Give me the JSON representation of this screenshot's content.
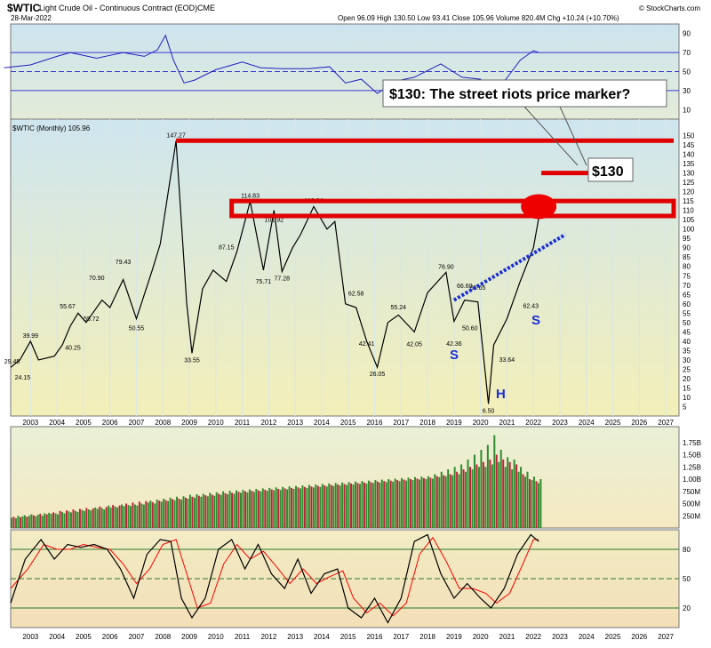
{
  "header": {
    "symbol": "$WTIC",
    "description": "Light Crude Oil - Continuous Contract (EOD)",
    "exchange": "CME",
    "date": "28-Mar-2022",
    "copyright": "© StockCharts.com",
    "ohlc_text": "Open 96.09  High 130.50  Low 93.41  Close 105.96  Volume 820.4M  Chg +10.24 (+10.70%)",
    "price_legend": "$WTIC (Monthly) 105.96"
  },
  "colors": {
    "red": "#e00000",
    "blue_line": "#2020c0",
    "dotted_blue": "#1a2ed6",
    "up_bar": "#2e8b2e",
    "down_bar": "#c0203a",
    "osc_black": "#000000",
    "osc_red": "#ff0000"
  },
  "callouts": {
    "riots": "$130:  The street riots price marker?",
    "target": "$130",
    "s_left": "S",
    "head": "H",
    "s_right": "S"
  },
  "chart_data": [
    {
      "type": "line",
      "panel": "rsi",
      "y_ticks": [
        "90",
        "70",
        "50",
        "30",
        "10"
      ],
      "ylim": [
        0,
        100
      ],
      "guides": [
        70,
        50,
        30
      ],
      "x": [
        2002.0,
        2003.0,
        2004.0,
        2004.5,
        2005.5,
        2006.5,
        2007.3,
        2007.8,
        2008.1,
        2008.4,
        2008.8,
        2009.2,
        2010.0,
        2011.0,
        2011.7,
        2012.5,
        2013.5,
        2014.3,
        2014.9,
        2015.5,
        2016.1,
        2016.8,
        2017.5,
        2018.5,
        2019.3,
        2020.0,
        2020.3,
        2020.8,
        2021.5,
        2022.0,
        2022.2
      ],
      "values": [
        54,
        57,
        66,
        70,
        64,
        70,
        66,
        73,
        88,
        62,
        38,
        41,
        52,
        60,
        54,
        53,
        53,
        55,
        38,
        42,
        27,
        40,
        44,
        58,
        44,
        42,
        18,
        36,
        62,
        72,
        70
      ]
    },
    {
      "type": "line",
      "panel": "price",
      "series_name": "$WTIC (Monthly)",
      "y_ticks": [
        "150",
        "145",
        "140",
        "135",
        "130",
        "125",
        "120",
        "115",
        "110",
        "105",
        "100",
        "95",
        "90",
        "85",
        "80",
        "75",
        "70",
        "65",
        "60",
        "55",
        "50",
        "45",
        "40",
        "35",
        "30",
        "25",
        "20",
        "15",
        "10",
        "5"
      ],
      "ylim": [
        0,
        155
      ],
      "x_ticks": [
        "2003",
        "2004",
        "2005",
        "2006",
        "2007",
        "2008",
        "2009",
        "2010",
        "2011",
        "2012",
        "2013",
        "2014",
        "2015",
        "2016",
        "2017",
        "2018",
        "2019",
        "2020",
        "2021",
        "2022",
        "2023",
        "2024",
        "2025",
        "2026",
        "2027"
      ],
      "xlim": [
        2002.25,
        2027.5
      ],
      "x": [
        2002.25,
        2002.6,
        2003.0,
        2003.3,
        2003.9,
        2004.2,
        2004.5,
        2004.8,
        2005.1,
        2005.7,
        2006.0,
        2006.5,
        2007.0,
        2007.6,
        2007.9,
        2008.5,
        2008.9,
        2009.1,
        2009.5,
        2009.9,
        2010.4,
        2010.8,
        2011.3,
        2011.8,
        2012.2,
        2012.5,
        2012.9,
        2013.2,
        2013.7,
        2014.2,
        2014.5,
        2014.9,
        2015.3,
        2015.7,
        2016.1,
        2016.5,
        2016.9,
        2017.5,
        2018.0,
        2018.7,
        2019.0,
        2019.4,
        2019.9,
        2020.3,
        2020.5,
        2021.0,
        2021.5,
        2022.0,
        2022.2
      ],
      "values": [
        26,
        30,
        39.99,
        30,
        32,
        38,
        48,
        55,
        50,
        62,
        58,
        73,
        52,
        78,
        92,
        147.27,
        60,
        33.55,
        68,
        78,
        72,
        88,
        114.83,
        78,
        110,
        77.28,
        90,
        97,
        112,
        100,
        104,
        60,
        58,
        40,
        26.05,
        50,
        54,
        45,
        66,
        76.9,
        50.6,
        62,
        61,
        6.5,
        38,
        52,
        72,
        90,
        105.96
      ]
    },
    {
      "type": "bar",
      "panel": "volume",
      "y_ticks": [
        "1.75B",
        "1.50B",
        "1.25B",
        "1.00B",
        "750M",
        "500M",
        "250M"
      ],
      "ylim": [
        0,
        2000
      ],
      "y_unit": "M",
      "x_start": 2002.25,
      "step": 0.0833,
      "values": [
        210,
        230,
        200,
        250,
        220,
        240,
        260,
        230,
        250,
        280,
        260,
        240,
        270,
        290,
        250,
        300,
        280,
        310,
        290,
        320,
        300,
        280,
        350,
        330,
        300,
        360,
        340,
        320,
        380,
        350,
        330,
        390,
        370,
        350,
        410,
        380,
        360,
        400,
        420,
        390,
        440,
        410,
        380,
        430,
        460,
        420,
        470,
        440,
        420,
        460,
        480,
        450,
        500,
        470,
        450,
        520,
        480,
        460,
        540,
        500,
        480,
        550,
        520,
        560,
        530,
        500,
        580,
        560,
        540,
        600,
        570,
        550,
        620,
        590,
        570,
        640,
        600,
        580,
        650,
        620,
        600,
        680,
        640,
        620,
        690,
        660,
        640,
        700,
        670,
        650,
        720,
        680,
        660,
        730,
        700,
        680,
        750,
        710,
        690,
        760,
        720,
        700,
        770,
        740,
        720,
        780,
        750,
        730,
        790,
        760,
        740,
        800,
        770,
        750,
        810,
        780,
        760,
        820,
        790,
        770,
        830,
        800,
        780,
        840,
        810,
        790,
        850,
        820,
        800,
        860,
        830,
        810,
        870,
        840,
        820,
        880,
        850,
        830,
        890,
        860,
        840,
        900,
        870,
        850,
        910,
        880,
        860,
        920,
        890,
        870,
        930,
        900,
        880,
        940,
        910,
        890,
        950,
        920,
        900,
        960,
        930,
        910,
        970,
        940,
        920,
        980,
        950,
        930,
        990,
        960,
        940,
        1000,
        970,
        950,
        1010,
        980,
        960,
        1020,
        990,
        970,
        1030,
        1000,
        980,
        1040,
        1010,
        990,
        1050,
        1020,
        1000,
        1060,
        1030,
        1010,
        1100,
        1060,
        1040,
        1150,
        1080,
        1060,
        1200,
        1100,
        1080,
        1250,
        1150,
        1100,
        1300,
        1200,
        1150,
        1400,
        1250,
        1200,
        1500,
        1300,
        1250,
        1600,
        1350,
        1250,
        1700,
        1400,
        1300,
        1900,
        1500,
        1350,
        1600,
        1400,
        1250,
        1450,
        1350,
        1200,
        1400,
        1300,
        1150,
        1250,
        1100,
        1050,
        1150,
        1000,
        980,
        1050,
        960,
        920,
        1000,
        900,
        880,
        1100,
        950,
        900,
        1300,
        1000,
        950,
        1600,
        1100,
        900,
        1900,
        1200,
        950,
        1100,
        900,
        850,
        950,
        880,
        860,
        920,
        860,
        840,
        900,
        850,
        880,
        950,
        900,
        860,
        920,
        870,
        850,
        820
      ]
    },
    {
      "type": "line",
      "panel": "stochastic",
      "y_ticks": [
        "80",
        "50",
        "20"
      ],
      "ylim": [
        0,
        100
      ],
      "guides": [
        80,
        50,
        20
      ],
      "x_ticks": [
        "2003",
        "2004",
        "2005",
        "2006",
        "2007",
        "2008",
        "2009",
        "2010",
        "2011",
        "2012",
        "2013",
        "2014",
        "2015",
        "2016",
        "2017",
        "2018",
        "2019",
        "2020",
        "2021",
        "2022",
        "2023",
        "2024",
        "2025",
        "2026",
        "2027"
      ],
      "series": [
        {
          "name": "%K",
          "x": [
            2002.25,
            2002.8,
            2003.4,
            2003.9,
            2004.4,
            2004.9,
            2005.4,
            2005.9,
            2006.4,
            2006.9,
            2007.4,
            2007.9,
            2008.3,
            2008.7,
            2009.1,
            2009.6,
            2010.1,
            2010.6,
            2011.1,
            2011.6,
            2012.1,
            2012.6,
            2013.1,
            2013.6,
            2014.1,
            2014.6,
            2015.0,
            2015.5,
            2016.0,
            2016.5,
            2017.0,
            2017.5,
            2018.0,
            2018.5,
            2019.0,
            2019.5,
            2020.0,
            2020.4,
            2020.9,
            2021.4,
            2021.9,
            2022.2
          ],
          "values": [
            25,
            70,
            90,
            70,
            85,
            82,
            85,
            80,
            60,
            30,
            75,
            90,
            88,
            30,
            10,
            30,
            80,
            90,
            60,
            85,
            55,
            40,
            70,
            35,
            55,
            60,
            20,
            10,
            30,
            5,
            30,
            88,
            95,
            55,
            30,
            45,
            30,
            20,
            40,
            75,
            95,
            88
          ]
        },
        {
          "name": "%D",
          "x": [
            2002.25,
            2002.9,
            2003.5,
            2004.0,
            2004.5,
            2005.0,
            2005.5,
            2006.0,
            2006.5,
            2007.0,
            2007.5,
            2008.0,
            2008.5,
            2008.9,
            2009.3,
            2009.8,
            2010.3,
            2010.8,
            2011.3,
            2011.8,
            2012.3,
            2012.8,
            2013.3,
            2013.8,
            2014.3,
            2014.8,
            2015.2,
            2015.7,
            2016.2,
            2016.7,
            2017.2,
            2017.7,
            2018.2,
            2018.7,
            2019.2,
            2019.7,
            2020.2,
            2020.6,
            2021.1,
            2021.6,
            2022.0,
            2022.2
          ],
          "values": [
            40,
            60,
            85,
            80,
            80,
            85,
            82,
            80,
            65,
            45,
            60,
            85,
            90,
            55,
            20,
            25,
            65,
            85,
            70,
            78,
            62,
            45,
            60,
            45,
            52,
            58,
            30,
            15,
            25,
            12,
            25,
            75,
            92,
            68,
            40,
            40,
            35,
            25,
            35,
            65,
            90,
            90
          ]
        }
      ]
    }
  ],
  "annotations": {
    "price_labels": [
      "29.45",
      "24.15",
      "39.99",
      "40.25",
      "55.67",
      "55.72",
      "70.90",
      "79.43",
      "50.55",
      "147.27",
      "33.55",
      "87.15",
      "114.83",
      "75.71",
      "101.92",
      "77.28",
      "112.24",
      "62.58",
      "42.41",
      "26.05",
      "55.24",
      "42.05",
      "76.90",
      "66.60",
      "65.65",
      "50.60",
      "42.36",
      "6.50",
      "33.64",
      "62.43"
    ],
    "resistance_level": 147.27,
    "zone_bottom": 107,
    "zone_top": 115,
    "target_level": 130,
    "circle_value": 112
  }
}
